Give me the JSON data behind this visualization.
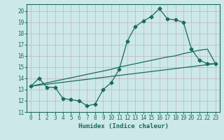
{
  "xlabel": "Humidex (Indice chaleur)",
  "bg_color": "#cce8e8",
  "grid_color": "#b0d8d8",
  "line_color": "#1a6b5a",
  "xlim": [
    -0.5,
    23.5
  ],
  "ylim": [
    11,
    20.6
  ],
  "xticks": [
    0,
    1,
    2,
    3,
    4,
    5,
    6,
    7,
    8,
    9,
    10,
    11,
    12,
    13,
    14,
    15,
    16,
    17,
    18,
    19,
    20,
    21,
    22,
    23
  ],
  "yticks": [
    11,
    12,
    13,
    14,
    15,
    16,
    17,
    18,
    19,
    20
  ],
  "line1_x": [
    0,
    1,
    2,
    3,
    4,
    5,
    6,
    7,
    8,
    9,
    10,
    11,
    12,
    13,
    14,
    15,
    16,
    17,
    18,
    19,
    20,
    21,
    22,
    23
  ],
  "line1_y": [
    13.3,
    14.0,
    13.2,
    13.2,
    12.2,
    12.1,
    12.0,
    11.55,
    11.7,
    13.0,
    13.6,
    14.8,
    17.3,
    18.6,
    19.1,
    19.5,
    20.2,
    19.3,
    19.2,
    19.0,
    16.6,
    15.6,
    15.3,
    15.3
  ],
  "line2_x": [
    0,
    23
  ],
  "line2_y": [
    13.3,
    15.3
  ],
  "line3_x": [
    0,
    1,
    2,
    3,
    4,
    5,
    6,
    7,
    8,
    9,
    10,
    11,
    12,
    13,
    14,
    15,
    16,
    17,
    18,
    19,
    20,
    21,
    22,
    23
  ],
  "line3_y": [
    13.3,
    13.45,
    13.6,
    13.75,
    13.9,
    14.05,
    14.2,
    14.35,
    14.5,
    14.65,
    14.8,
    15.0,
    15.15,
    15.3,
    15.45,
    15.6,
    15.75,
    15.9,
    16.0,
    16.2,
    16.35,
    16.5,
    16.6,
    15.3
  ]
}
